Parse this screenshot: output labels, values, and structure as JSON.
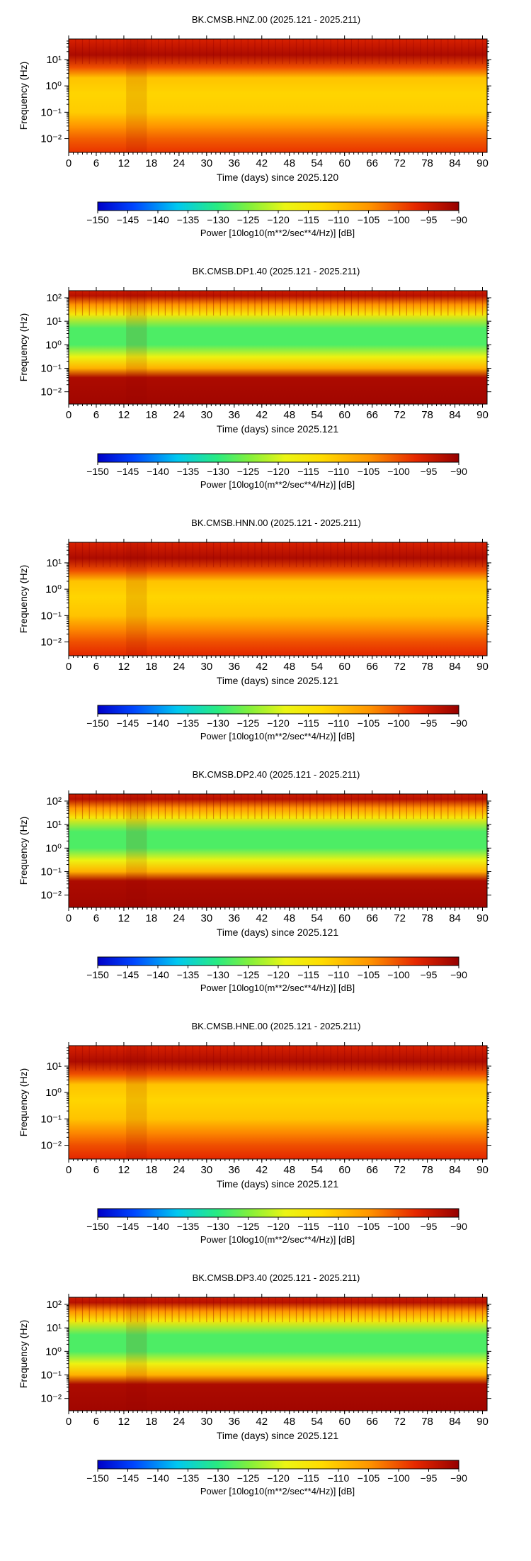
{
  "chart_data": [
    {
      "type": "heatmap",
      "title": "BK.CMSB.HNZ.00 (2025.121 - 2025.211)",
      "xlabel": "Time (days) since 2025.120",
      "ylabel": "Frequency (Hz)",
      "x_ticks": [
        "0",
        "6",
        "12",
        "18",
        "24",
        "30",
        "36",
        "42",
        "48",
        "54",
        "60",
        "66",
        "72",
        "78",
        "84",
        "90"
      ],
      "xlim": [
        0,
        91
      ],
      "y_scale": "log",
      "y_ticks": [
        "10^-2",
        "10^-1",
        "10^0",
        "10^1"
      ],
      "ylim": [
        0.003,
        60
      ],
      "colorbar": {
        "range": [
          -150,
          -90
        ],
        "ticks": [
          "−150",
          "−145",
          "−140",
          "−135",
          "−130",
          "−125",
          "−120",
          "−115",
          "−110",
          "−105",
          "−100",
          "−95",
          "−90"
        ],
        "label": "Power [10log10(m**2/sec**4/Hz)] [dB]"
      },
      "power_profile_db": [
        {
          "freq_hz": 60,
          "db": -96
        },
        {
          "freq_hz": 15,
          "db": -92
        },
        {
          "freq_hz": 5,
          "db": -100
        },
        {
          "freq_hz": 2,
          "db": -110
        },
        {
          "freq_hz": 0.5,
          "db": -112
        },
        {
          "freq_hz": 0.1,
          "db": -111
        },
        {
          "freq_hz": 0.03,
          "db": -105
        },
        {
          "freq_hz": 0.01,
          "db": -101
        },
        {
          "freq_hz": 0.003,
          "db": -98
        }
      ]
    },
    {
      "type": "heatmap",
      "title": "BK.CMSB.DP1.40 (2025.121 - 2025.211)",
      "xlabel": "Time (days) since 2025.121",
      "ylabel": "Frequency (Hz)",
      "x_ticks": [
        "0",
        "6",
        "12",
        "18",
        "24",
        "30",
        "36",
        "42",
        "48",
        "54",
        "60",
        "66",
        "72",
        "78",
        "84",
        "90"
      ],
      "xlim": [
        0,
        91
      ],
      "y_scale": "log",
      "y_ticks": [
        "10^-2",
        "10^-1",
        "10^0",
        "10^1",
        "10^2"
      ],
      "ylim": [
        0.003,
        200
      ],
      "colorbar": {
        "range": [
          -150,
          -90
        ],
        "ticks": [
          "−150",
          "−145",
          "−140",
          "−135",
          "−130",
          "−125",
          "−120",
          "−115",
          "−110",
          "−105",
          "−100",
          "−95",
          "−90"
        ],
        "label": "Power [10log10(m**2/sec**4/Hz)] [dB]"
      },
      "power_profile_db": [
        {
          "freq_hz": 200,
          "db": -95
        },
        {
          "freq_hz": 120,
          "db": -93
        },
        {
          "freq_hz": 50,
          "db": -105
        },
        {
          "freq_hz": 20,
          "db": -115
        },
        {
          "freq_hz": 5,
          "db": -128
        },
        {
          "freq_hz": 1,
          "db": -128
        },
        {
          "freq_hz": 0.3,
          "db": -118
        },
        {
          "freq_hz": 0.1,
          "db": -108
        },
        {
          "freq_hz": 0.04,
          "db": -92
        },
        {
          "freq_hz": 0.003,
          "db": -91
        }
      ]
    },
    {
      "type": "heatmap",
      "title": "BK.CMSB.HNN.00 (2025.121 - 2025.211)",
      "xlabel": "Time (days) since 2025.121",
      "ylabel": "Frequency (Hz)",
      "x_ticks": [
        "0",
        "6",
        "12",
        "18",
        "24",
        "30",
        "36",
        "42",
        "48",
        "54",
        "60",
        "66",
        "72",
        "78",
        "84",
        "90"
      ],
      "xlim": [
        0,
        91
      ],
      "y_scale": "log",
      "y_ticks": [
        "10^-2",
        "10^-1",
        "10^0",
        "10^1"
      ],
      "ylim": [
        0.003,
        60
      ],
      "colorbar": {
        "range": [
          -150,
          -90
        ],
        "ticks": [
          "−150",
          "−145",
          "−140",
          "−135",
          "−130",
          "−125",
          "−120",
          "−115",
          "−110",
          "−105",
          "−100",
          "−95",
          "−90"
        ],
        "label": "Power [10log10(m**2/sec**4/Hz)] [dB]"
      },
      "power_profile_db": [
        {
          "freq_hz": 60,
          "db": -96
        },
        {
          "freq_hz": 15,
          "db": -92
        },
        {
          "freq_hz": 5,
          "db": -100
        },
        {
          "freq_hz": 2,
          "db": -110
        },
        {
          "freq_hz": 0.5,
          "db": -112
        },
        {
          "freq_hz": 0.1,
          "db": -110
        },
        {
          "freq_hz": 0.03,
          "db": -104
        },
        {
          "freq_hz": 0.01,
          "db": -100
        },
        {
          "freq_hz": 0.003,
          "db": -97
        }
      ]
    },
    {
      "type": "heatmap",
      "title": "BK.CMSB.DP2.40 (2025.121 - 2025.211)",
      "xlabel": "Time (days) since 2025.121",
      "ylabel": "Frequency (Hz)",
      "x_ticks": [
        "0",
        "6",
        "12",
        "18",
        "24",
        "30",
        "36",
        "42",
        "48",
        "54",
        "60",
        "66",
        "72",
        "78",
        "84",
        "90"
      ],
      "xlim": [
        0,
        91
      ],
      "y_scale": "log",
      "y_ticks": [
        "10^-2",
        "10^-1",
        "10^0",
        "10^1",
        "10^2"
      ],
      "ylim": [
        0.003,
        200
      ],
      "colorbar": {
        "range": [
          -150,
          -90
        ],
        "ticks": [
          "−150",
          "−145",
          "−140",
          "−135",
          "−130",
          "−125",
          "−120",
          "−115",
          "−110",
          "−105",
          "−100",
          "−95",
          "−90"
        ],
        "label": "Power [10log10(m**2/sec**4/Hz)] [dB]"
      },
      "power_profile_db": [
        {
          "freq_hz": 200,
          "db": -95
        },
        {
          "freq_hz": 120,
          "db": -93
        },
        {
          "freq_hz": 50,
          "db": -105
        },
        {
          "freq_hz": 20,
          "db": -115
        },
        {
          "freq_hz": 5,
          "db": -128
        },
        {
          "freq_hz": 1,
          "db": -128
        },
        {
          "freq_hz": 0.3,
          "db": -118
        },
        {
          "freq_hz": 0.1,
          "db": -108
        },
        {
          "freq_hz": 0.04,
          "db": -92
        },
        {
          "freq_hz": 0.003,
          "db": -91
        }
      ]
    },
    {
      "type": "heatmap",
      "title": "BK.CMSB.HNE.00 (2025.121 - 2025.211)",
      "xlabel": "Time (days) since 2025.121",
      "ylabel": "Frequency (Hz)",
      "x_ticks": [
        "0",
        "6",
        "12",
        "18",
        "24",
        "30",
        "36",
        "42",
        "48",
        "54",
        "60",
        "66",
        "72",
        "78",
        "84",
        "90"
      ],
      "xlim": [
        0,
        91
      ],
      "y_scale": "log",
      "y_ticks": [
        "10^-2",
        "10^-1",
        "10^0",
        "10^1"
      ],
      "ylim": [
        0.003,
        60
      ],
      "colorbar": {
        "range": [
          -150,
          -90
        ],
        "ticks": [
          "−150",
          "−145",
          "−140",
          "−135",
          "−130",
          "−125",
          "−120",
          "−115",
          "−110",
          "−105",
          "−100",
          "−95",
          "−90"
        ],
        "label": "Power [10log10(m**2/sec**4/Hz)] [dB]"
      },
      "power_profile_db": [
        {
          "freq_hz": 60,
          "db": -96
        },
        {
          "freq_hz": 15,
          "db": -92
        },
        {
          "freq_hz": 5,
          "db": -100
        },
        {
          "freq_hz": 2,
          "db": -110
        },
        {
          "freq_hz": 0.5,
          "db": -112
        },
        {
          "freq_hz": 0.1,
          "db": -110
        },
        {
          "freq_hz": 0.03,
          "db": -104
        },
        {
          "freq_hz": 0.01,
          "db": -100
        },
        {
          "freq_hz": 0.003,
          "db": -97
        }
      ]
    },
    {
      "type": "heatmap",
      "title": "BK.CMSB.DP3.40 (2025.121 - 2025.211)",
      "xlabel": "Time (days) since 2025.121",
      "ylabel": "Frequency (Hz)",
      "x_ticks": [
        "0",
        "6",
        "12",
        "18",
        "24",
        "30",
        "36",
        "42",
        "48",
        "54",
        "60",
        "66",
        "72",
        "78",
        "84",
        "90"
      ],
      "xlim": [
        0,
        91
      ],
      "y_scale": "log",
      "y_ticks": [
        "10^-2",
        "10^-1",
        "10^0",
        "10^1",
        "10^2"
      ],
      "ylim": [
        0.003,
        200
      ],
      "colorbar": {
        "range": [
          -150,
          -90
        ],
        "ticks": [
          "−150",
          "−145",
          "−140",
          "−135",
          "−130",
          "−125",
          "−120",
          "−115",
          "−110",
          "−105",
          "−100",
          "−95",
          "−90"
        ],
        "label": "Power [10log10(m**2/sec**4/Hz)] [dB]"
      },
      "power_profile_db": [
        {
          "freq_hz": 200,
          "db": -95
        },
        {
          "freq_hz": 120,
          "db": -93
        },
        {
          "freq_hz": 50,
          "db": -105
        },
        {
          "freq_hz": 20,
          "db": -115
        },
        {
          "freq_hz": 5,
          "db": -128
        },
        {
          "freq_hz": 1,
          "db": -128
        },
        {
          "freq_hz": 0.3,
          "db": -118
        },
        {
          "freq_hz": 0.1,
          "db": -108
        },
        {
          "freq_hz": 0.04,
          "db": -92
        },
        {
          "freq_hz": 0.003,
          "db": -91
        }
      ]
    }
  ]
}
